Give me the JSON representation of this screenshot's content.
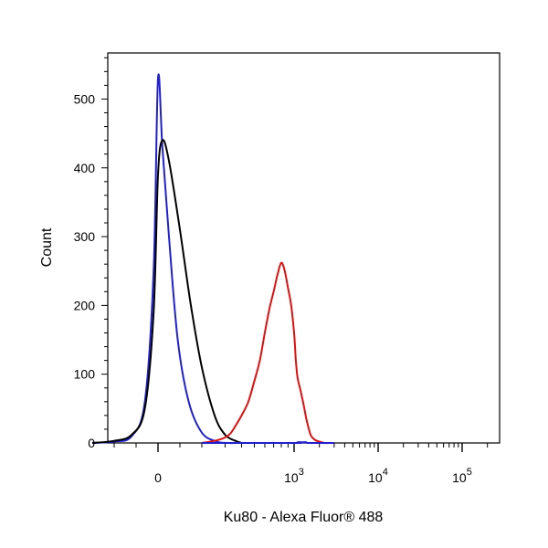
{
  "chart_data": {
    "type": "line",
    "title": "",
    "xlabel": "Ku80 - Alexa Fluor® 488",
    "ylabel": "Count",
    "x_scale": "biexponential",
    "ylim": [
      0,
      567
    ],
    "y_ticks": [
      0,
      100,
      200,
      300,
      400,
      500
    ],
    "x_ticks": [
      {
        "value": 0,
        "base": "0",
        "exp": ""
      },
      {
        "value": 1000,
        "base": "10",
        "exp": "3"
      },
      {
        "value": 10000,
        "base": "10",
        "exp": "4"
      },
      {
        "value": 100000,
        "base": "10",
        "exp": "5"
      }
    ],
    "grid": false,
    "legend": "none",
    "series": [
      {
        "color": "#2222cc",
        "x": [
          -300,
          -200,
          -120,
          -60,
          -20,
          0,
          20,
          50,
          90,
          140,
          200,
          260,
          320,
          380
        ],
        "y": [
          0,
          2,
          10,
          60,
          250,
          530,
          430,
          300,
          150,
          60,
          15,
          2,
          0,
          0
        ]
      },
      {
        "color": "#000000",
        "x": [
          -300,
          -200,
          -120,
          -60,
          -20,
          0,
          20,
          50,
          100,
          150,
          200,
          250,
          300,
          360,
          400
        ],
        "y": [
          0,
          3,
          12,
          50,
          190,
          390,
          440,
          410,
          310,
          200,
          110,
          40,
          12,
          3,
          0
        ]
      },
      {
        "color": "#dd1111",
        "x": [
          200,
          250,
          300,
          330,
          360,
          400,
          450,
          500,
          550,
          600,
          650,
          700,
          750,
          800,
          850,
          900,
          950,
          1000,
          1050,
          1100,
          1200,
          1300,
          1400,
          1500,
          1600,
          1800,
          2000,
          2300,
          2700,
          3000
        ],
        "y": [
          0,
          3,
          8,
          14,
          25,
          40,
          60,
          90,
          120,
          160,
          195,
          220,
          245,
          262,
          250,
          225,
          200,
          160,
          120,
          95,
          75,
          55,
          35,
          20,
          10,
          4,
          2,
          0,
          0,
          0
        ]
      },
      {
        "color": "#2222cc",
        "x": [
          200,
          1000,
          1100,
          1200,
          1300,
          1400,
          1500,
          3000
        ],
        "y": [
          0,
          0,
          1,
          1,
          1,
          1,
          0,
          0
        ]
      }
    ]
  }
}
